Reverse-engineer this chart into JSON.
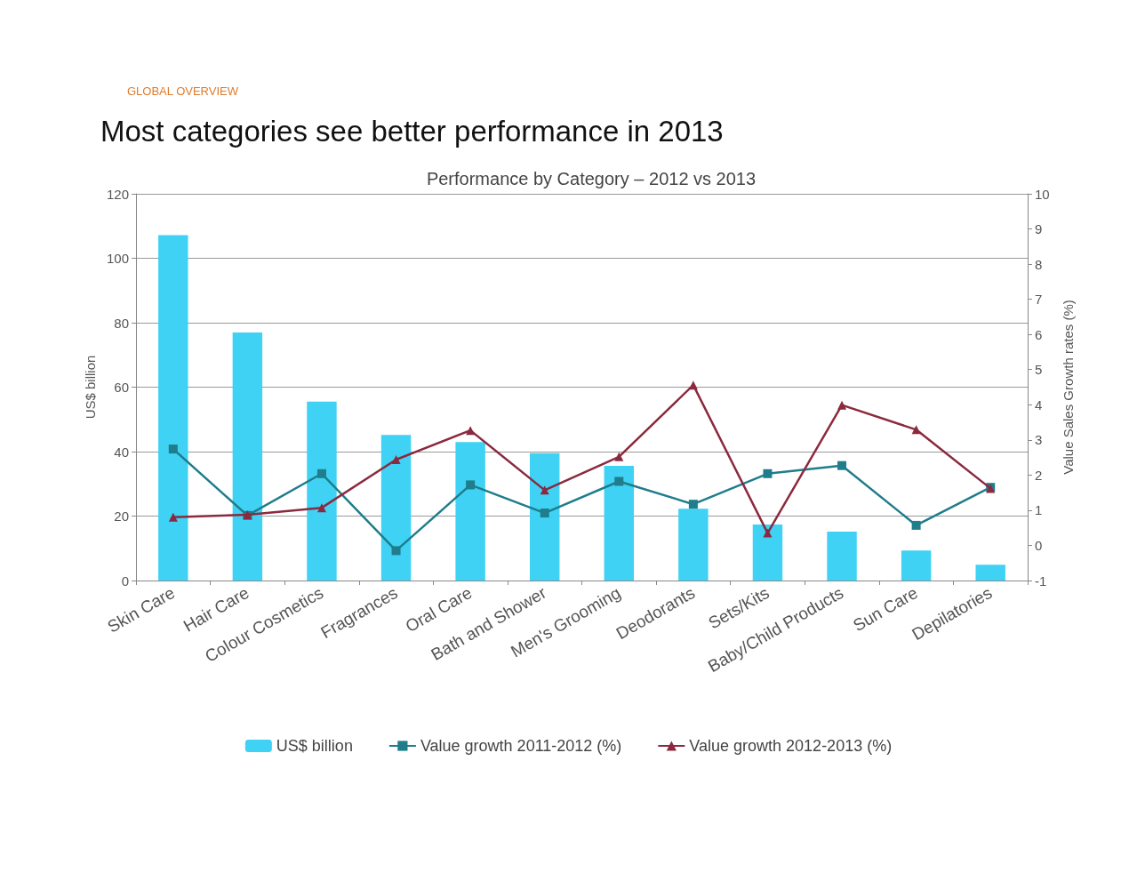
{
  "chart_data": {
    "type": "bar",
    "title": "Most categories see better performance in 2013",
    "subtitle": "Performance by Category – 2012 vs 2013",
    "annotations": [
      "GLOBAL OVERVIEW"
    ],
    "ylabel": "US$ billion",
    "y2label": "Value Sales Growth rates (%)",
    "categories": [
      "Skin Care",
      "Hair Care",
      "Colour Cosmetics",
      "Fragrances",
      "Oral Care",
      "Bath and Shower",
      "Men's Grooming",
      "Deodorants",
      "Sets/Kits",
      "Baby/Child Products",
      "Sun Care",
      "Depilatories"
    ],
    "series": [
      {
        "name": "US$ billion",
        "color": "#3fd2f4",
        "values": [
          107.2,
          77,
          55.5,
          45.2,
          43,
          39.5,
          35.6,
          22.3,
          17.4,
          15.2,
          9.3,
          4.9
        ]
      },
      {
        "name": "Value growth 2011-2012 (%)",
        "type": "line",
        "axis": "y2",
        "marker": "square",
        "color": "#1f7d8c",
        "values": [
          2.74,
          0.85,
          2.04,
          -0.15,
          1.72,
          0.92,
          1.82,
          1.17,
          2.04,
          2.27,
          0.57,
          1.65
        ]
      },
      {
        "name": "Value growth 2012-2013 (%)",
        "type": "line",
        "axis": "y2",
        "marker": "triangle",
        "color": "#8b2a3e",
        "values": [
          0.8,
          0.87,
          1.07,
          2.44,
          3.27,
          1.57,
          2.52,
          4.56,
          0.35,
          3.99,
          3.29,
          1.62
        ]
      }
    ],
    "ylim": [
      0,
      120
    ],
    "yticks": [
      0,
      20,
      40,
      60,
      80,
      100,
      120
    ],
    "y2lim": [
      -1,
      10
    ],
    "y2ticks": [
      -1,
      0,
      1,
      2,
      3,
      4,
      5,
      6,
      7,
      8,
      9,
      10
    ],
    "grid": "y",
    "legend": "bottom",
    "line_style": "solid"
  }
}
